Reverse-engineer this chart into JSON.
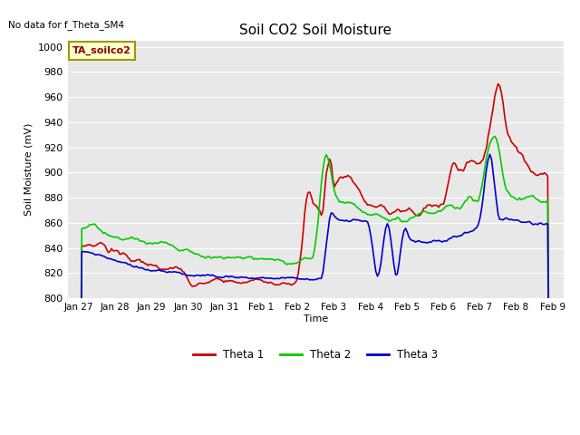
{
  "title": "Soil CO2 Soil Moisture",
  "ylabel": "Soil Moisture (mV)",
  "xlabel": "Time",
  "ylim": [
    800,
    1005
  ],
  "yticks": [
    800,
    820,
    840,
    860,
    880,
    900,
    920,
    940,
    960,
    980,
    1000
  ],
  "xtick_labels": [
    "Jan 27",
    "Jan 28",
    "Jan 29",
    "Jan 30",
    "Jan 31",
    "Feb 1",
    "Feb 2",
    "Feb 3",
    "Feb 4",
    "Feb 5",
    "Feb 6",
    "Feb 7",
    "Feb 8",
    "Feb 9"
  ],
  "no_data_text": "No data for f_Theta_SM4",
  "legend_label": "TA_soilco2",
  "colors": {
    "theta1": "#cc0000",
    "theta2": "#00cc00",
    "theta3": "#0000cc",
    "background": "#e8e8e8",
    "legend_box_bg": "#ffffcc",
    "legend_box_border": "#999900"
  },
  "line_width": 1.2
}
